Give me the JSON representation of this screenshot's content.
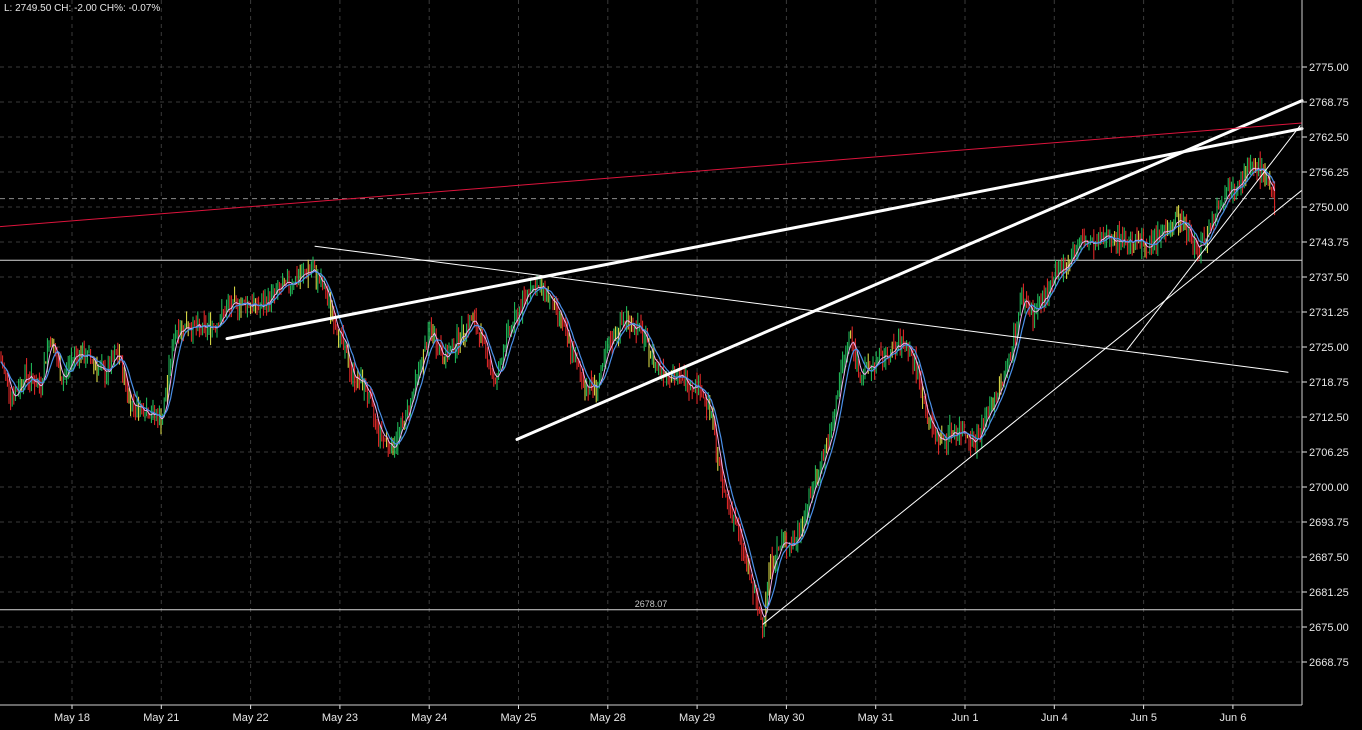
{
  "header": {
    "last_label": "L:",
    "last_value": "2749.50",
    "change_label": "CH:",
    "change_value": "-2.00",
    "change_pct_label": "CH%:",
    "change_pct_value": "-0.07%"
  },
  "colors": {
    "background": "#000000",
    "grid": "#3a3a3a",
    "axis_text": "#e6e6e6",
    "up_candle": "#22c55e",
    "down_candle": "#ef2b2b",
    "neutral_candle": "#e8e84a",
    "ma_fast": "#f0b0f0",
    "ma_slow": "#4a90e8",
    "trendline": "#ffffff",
    "resistance_line": "#dc143c"
  },
  "chart_data": {
    "type": "candlestick",
    "x_labels": [
      "May 18",
      "May 21",
      "May 22",
      "May 23",
      "May 24",
      "May 25",
      "May 28",
      "May 29",
      "May 30",
      "May 31",
      "Jun 1",
      "Jun 4",
      "Jun 5",
      "Jun 6"
    ],
    "y_ticks": [
      "2775.00",
      "2768.75",
      "2762.50",
      "2756.25",
      "2750.00",
      "2743.75",
      "2737.50",
      "2731.25",
      "2725.00",
      "2718.75",
      "2712.50",
      "2706.25",
      "2700.00",
      "2693.75",
      "2687.50",
      "2681.25",
      "2675.00",
      "2668.75"
    ],
    "ylim": [
      2664,
      2779
    ],
    "grid": true,
    "current_price": 2749.5,
    "previous_close_dashed": 2751.5,
    "horizontal_levels": [
      {
        "price": 2740.5,
        "label": ""
      },
      {
        "price": 2678.07,
        "label": "2678.07"
      }
    ],
    "price_path": [
      [
        0,
        2723
      ],
      [
        12,
        2716
      ],
      [
        25,
        2720
      ],
      [
        40,
        2718
      ],
      [
        50,
        2727
      ],
      [
        62,
        2719
      ],
      [
        75,
        2724
      ],
      [
        90,
        2723
      ],
      [
        105,
        2720
      ],
      [
        118,
        2724
      ],
      [
        130,
        2715
      ],
      [
        145,
        2714
      ],
      [
        162,
        2712
      ],
      [
        175,
        2728
      ],
      [
        188,
        2729
      ],
      [
        200,
        2728
      ],
      [
        215,
        2729
      ],
      [
        228,
        2732
      ],
      [
        245,
        2733
      ],
      [
        260,
        2732
      ],
      [
        278,
        2735
      ],
      [
        295,
        2737
      ],
      [
        312,
        2739
      ],
      [
        325,
        2735
      ],
      [
        338,
        2728
      ],
      [
        352,
        2720
      ],
      [
        365,
        2718
      ],
      [
        378,
        2710
      ],
      [
        392,
        2707
      ],
      [
        405,
        2712
      ],
      [
        418,
        2720
      ],
      [
        430,
        2728
      ],
      [
        445,
        2723
      ],
      [
        460,
        2727
      ],
      [
        472,
        2730
      ],
      [
        485,
        2725
      ],
      [
        495,
        2718
      ],
      [
        505,
        2726
      ],
      [
        518,
        2731
      ],
      [
        530,
        2736
      ],
      [
        545,
        2735
      ],
      [
        560,
        2730
      ],
      [
        572,
        2724
      ],
      [
        585,
        2718
      ],
      [
        598,
        2718
      ],
      [
        610,
        2726
      ],
      [
        625,
        2730
      ],
      [
        640,
        2728
      ],
      [
        655,
        2722
      ],
      [
        670,
        2720
      ],
      [
        685,
        2719
      ],
      [
        700,
        2718
      ],
      [
        712,
        2712
      ],
      [
        722,
        2700
      ],
      [
        735,
        2694
      ],
      [
        748,
        2685
      ],
      [
        758,
        2678
      ],
      [
        763,
        2676
      ],
      [
        770,
        2686
      ],
      [
        782,
        2690
      ],
      [
        795,
        2690
      ],
      [
        808,
        2697
      ],
      [
        820,
        2704
      ],
      [
        832,
        2710
      ],
      [
        840,
        2720
      ],
      [
        850,
        2727
      ],
      [
        860,
        2720
      ],
      [
        875,
        2722
      ],
      [
        890,
        2724
      ],
      [
        905,
        2726
      ],
      [
        915,
        2722
      ],
      [
        928,
        2712
      ],
      [
        940,
        2708
      ],
      [
        952,
        2710
      ],
      [
        965,
        2710
      ],
      [
        975,
        2708
      ],
      [
        990,
        2714
      ],
      [
        1003,
        2719
      ],
      [
        1012,
        2725
      ],
      [
        1022,
        2734
      ],
      [
        1033,
        2731
      ],
      [
        1045,
        2734
      ],
      [
        1058,
        2738
      ],
      [
        1070,
        2741
      ],
      [
        1082,
        2744
      ],
      [
        1095,
        2743
      ],
      [
        1108,
        2745
      ],
      [
        1122,
        2744
      ],
      [
        1135,
        2744
      ],
      [
        1150,
        2743
      ],
      [
        1165,
        2746
      ],
      [
        1178,
        2748
      ],
      [
        1190,
        2745
      ],
      [
        1198,
        2742
      ],
      [
        1208,
        2746
      ],
      [
        1220,
        2751
      ],
      [
        1232,
        2754
      ],
      [
        1245,
        2756
      ],
      [
        1258,
        2757
      ],
      [
        1268,
        2755
      ],
      [
        1276,
        2749.5
      ]
    ],
    "trendlines": [
      {
        "x": [
          227,
          1302
        ],
        "y": [
          2726.5,
          2764.0
        ],
        "width": 3
      },
      {
        "x": [
          517,
          1302
        ],
        "y": [
          2708.5,
          2769.0
        ],
        "width": 3
      },
      {
        "x": [
          315,
          1288
        ],
        "y": [
          2743.0,
          2720.5
        ],
        "width": 1
      },
      {
        "x": [
          763,
          1302
        ],
        "y": [
          2675.5,
          2753.0
        ],
        "width": 1
      },
      {
        "x": [
          1127,
          1300
        ],
        "y": [
          2724.5,
          2764.5
        ],
        "width": 1
      }
    ],
    "resistance": {
      "x": [
        0,
        1302
      ],
      "y": [
        2746.5,
        2765.0
      ]
    }
  }
}
